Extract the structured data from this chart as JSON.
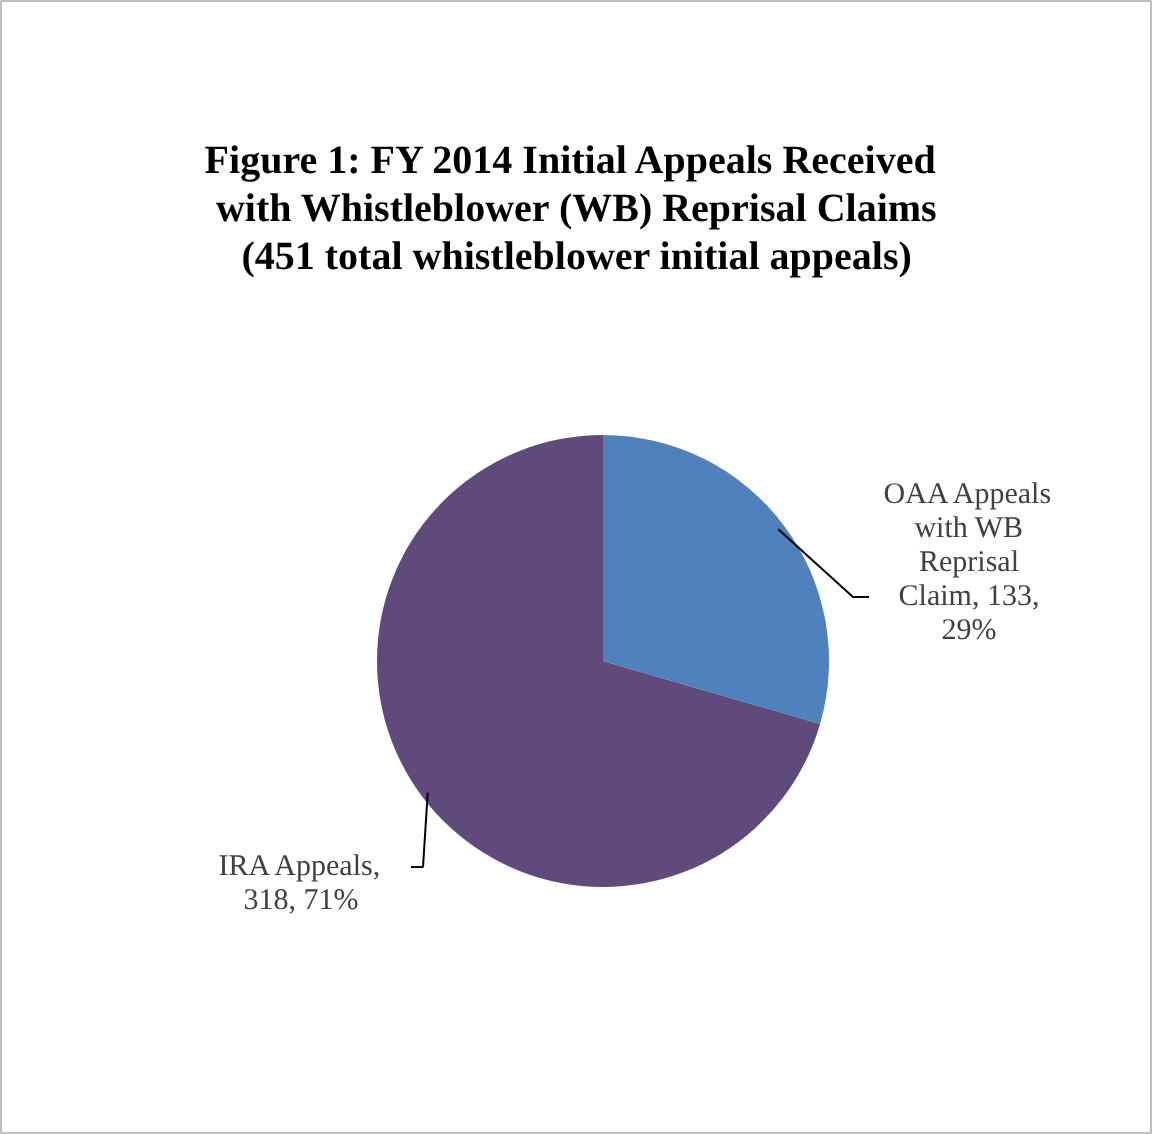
{
  "chart_data": {
    "type": "pie",
    "title": "Figure 1:  FY 2014 Initial Appeals Received\nwith Whistleblower (WB) Reprisal Claims\n(451 total whistleblower initial appeals)",
    "categories": [
      "OAA Appeals with WB Reprisal Claim, 133, 29%",
      "IRA Appeals, 318, 71%"
    ],
    "values": [
      133,
      318
    ],
    "colors": [
      "#4f81bd",
      "#604a7b"
    ]
  }
}
